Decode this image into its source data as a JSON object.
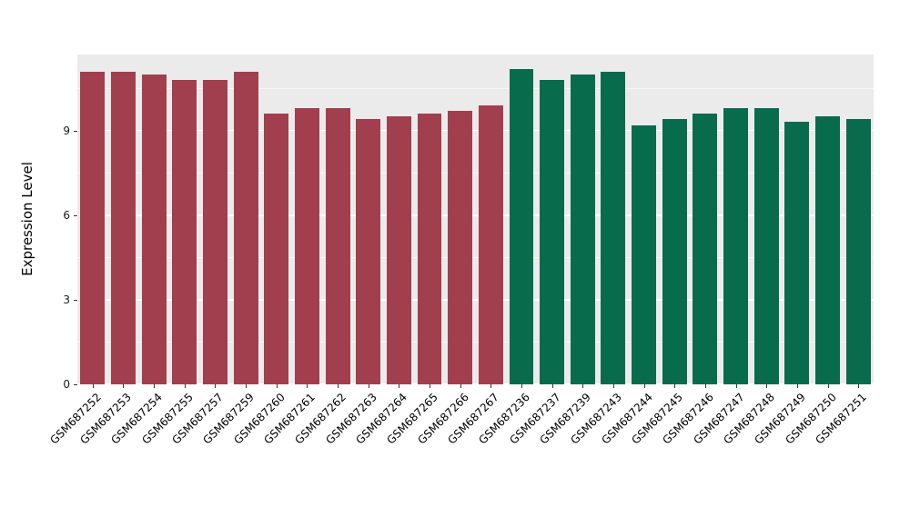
{
  "chart_data": {
    "type": "bar",
    "title": "",
    "xlabel": "",
    "ylabel": "Expression Level",
    "ylim": [
      0,
      11.7
    ],
    "yticks": [
      0,
      3,
      6,
      9
    ],
    "yticks_minor": [
      1.5,
      4.5,
      7.5,
      10.5
    ],
    "grid": "on",
    "legend": "none",
    "panel_bg": "#EBEBEB",
    "grid_color": "#FFFFFF",
    "group_colors": {
      "maroon": "#A13F4E",
      "green": "#086B4C"
    },
    "bars": [
      {
        "label": "GSM687252",
        "value": 11.1,
        "group": "maroon"
      },
      {
        "label": "GSM687253",
        "value": 11.1,
        "group": "maroon"
      },
      {
        "label": "GSM687254",
        "value": 11.0,
        "group": "maroon"
      },
      {
        "label": "GSM687255",
        "value": 10.8,
        "group": "maroon"
      },
      {
        "label": "GSM687257",
        "value": 10.8,
        "group": "maroon"
      },
      {
        "label": "GSM687259",
        "value": 11.1,
        "group": "maroon"
      },
      {
        "label": "GSM687260",
        "value": 9.6,
        "group": "maroon"
      },
      {
        "label": "GSM687261",
        "value": 9.8,
        "group": "maroon"
      },
      {
        "label": "GSM687262",
        "value": 9.8,
        "group": "maroon"
      },
      {
        "label": "GSM687263",
        "value": 9.4,
        "group": "maroon"
      },
      {
        "label": "GSM687264",
        "value": 9.5,
        "group": "maroon"
      },
      {
        "label": "GSM687265",
        "value": 9.6,
        "group": "maroon"
      },
      {
        "label": "GSM687266",
        "value": 9.7,
        "group": "maroon"
      },
      {
        "label": "GSM687267",
        "value": 9.9,
        "group": "maroon"
      },
      {
        "label": "GSM687236",
        "value": 11.2,
        "group": "green"
      },
      {
        "label": "GSM687237",
        "value": 10.8,
        "group": "green"
      },
      {
        "label": "GSM687239",
        "value": 11.0,
        "group": "green"
      },
      {
        "label": "GSM687243",
        "value": 11.1,
        "group": "green"
      },
      {
        "label": "GSM687244",
        "value": 9.2,
        "group": "green"
      },
      {
        "label": "GSM687245",
        "value": 9.4,
        "group": "green"
      },
      {
        "label": "GSM687246",
        "value": 9.6,
        "group": "green"
      },
      {
        "label": "GSM687247",
        "value": 9.8,
        "group": "green"
      },
      {
        "label": "GSM687248",
        "value": 9.8,
        "group": "green"
      },
      {
        "label": "GSM687249",
        "value": 9.3,
        "group": "green"
      },
      {
        "label": "GSM687250",
        "value": 9.5,
        "group": "green"
      },
      {
        "label": "GSM687251",
        "value": 9.4,
        "group": "green"
      }
    ]
  }
}
